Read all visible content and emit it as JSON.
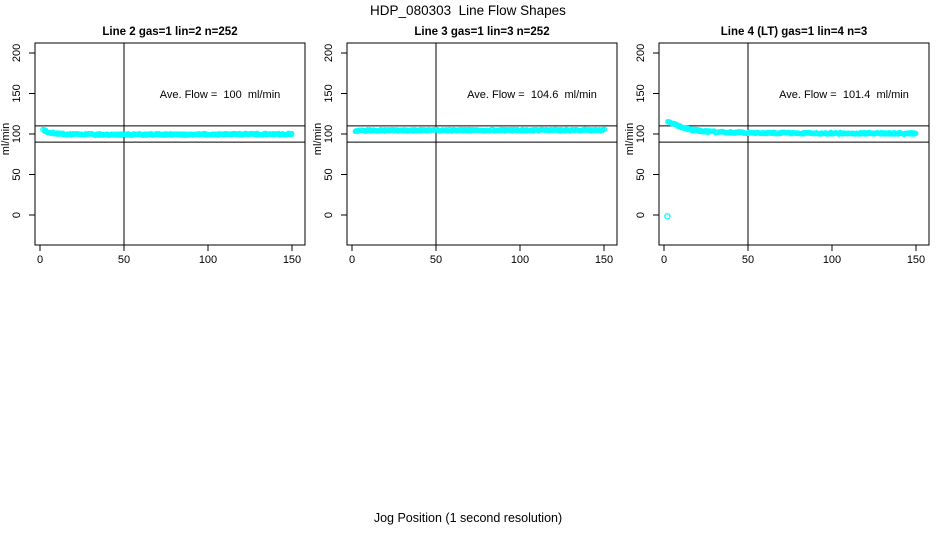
{
  "title": "HDP_080303  Line Flow Shapes",
  "xlabel": "Jog Position (1 second resolution)",
  "colors": {
    "points": "#00FFFF",
    "axis": "#000000",
    "background": "#FFFFFF"
  },
  "chart_data": {
    "type": "scatter",
    "title": "HDP_080303  Line Flow Shapes",
    "xlabel": "Jog Position (1 second resolution)",
    "ylabel": "ml/min",
    "x_ticks": [
      0,
      50,
      100,
      150
    ],
    "y_ticks": [
      0,
      50,
      100,
      150,
      200
    ],
    "xlim": [
      -3,
      157
    ],
    "ylim": [
      -37,
      212
    ],
    "grid": false,
    "legend": false,
    "marker": "open-circle",
    "reference_lines": {
      "vertical_x": 50,
      "horizontal_y": [
        110,
        90
      ]
    },
    "annotation_position": {
      "x": 107,
      "y": 148
    },
    "panels": [
      {
        "line_label": "Line 2",
        "gas": 1,
        "lin": 2,
        "n": 252,
        "title": "Line 2 gas=1 lin=2 n=252",
        "annotation": "Ave. Flow =  100  ml/min",
        "ave_flow_ml_min": 100,
        "band_profile": [
          [
            2,
            105
          ],
          [
            5,
            102
          ],
          [
            10,
            100.4
          ],
          [
            20,
            99.5
          ],
          [
            50,
            99.3
          ],
          [
            100,
            99.6
          ],
          [
            150,
            99.9
          ]
        ],
        "outliers": []
      },
      {
        "line_label": "Line 3",
        "gas": 1,
        "lin": 3,
        "n": 252,
        "title": "Line 3 gas=1 lin=3 n=252",
        "annotation": "Ave. Flow =  104.6  ml/min",
        "ave_flow_ml_min": 104.6,
        "band_profile": [
          [
            2,
            104.2
          ],
          [
            10,
            104.5
          ],
          [
            80,
            104.7
          ],
          [
            150,
            104.9
          ]
        ],
        "outliers": []
      },
      {
        "line_label": "Line 4 (LT)",
        "gas": 1,
        "lin": 4,
        "n": 3,
        "title": "Line 4 (LT) gas=1 lin=4 n=3",
        "annotation": "Ave. Flow =  101.4  ml/min",
        "ave_flow_ml_min": 101.4,
        "band_profile": [
          [
            2,
            115
          ],
          [
            4,
            113.8
          ],
          [
            8,
            110.5
          ],
          [
            12,
            107.5
          ],
          [
            16,
            105.5
          ],
          [
            22,
            103.8
          ],
          [
            30,
            102.6
          ],
          [
            40,
            102
          ],
          [
            50,
            101.6
          ],
          [
            70,
            101.2
          ],
          [
            100,
            101
          ],
          [
            150,
            100.7
          ]
        ],
        "outliers": [
          [
            2,
            -1.5
          ]
        ]
      }
    ]
  }
}
